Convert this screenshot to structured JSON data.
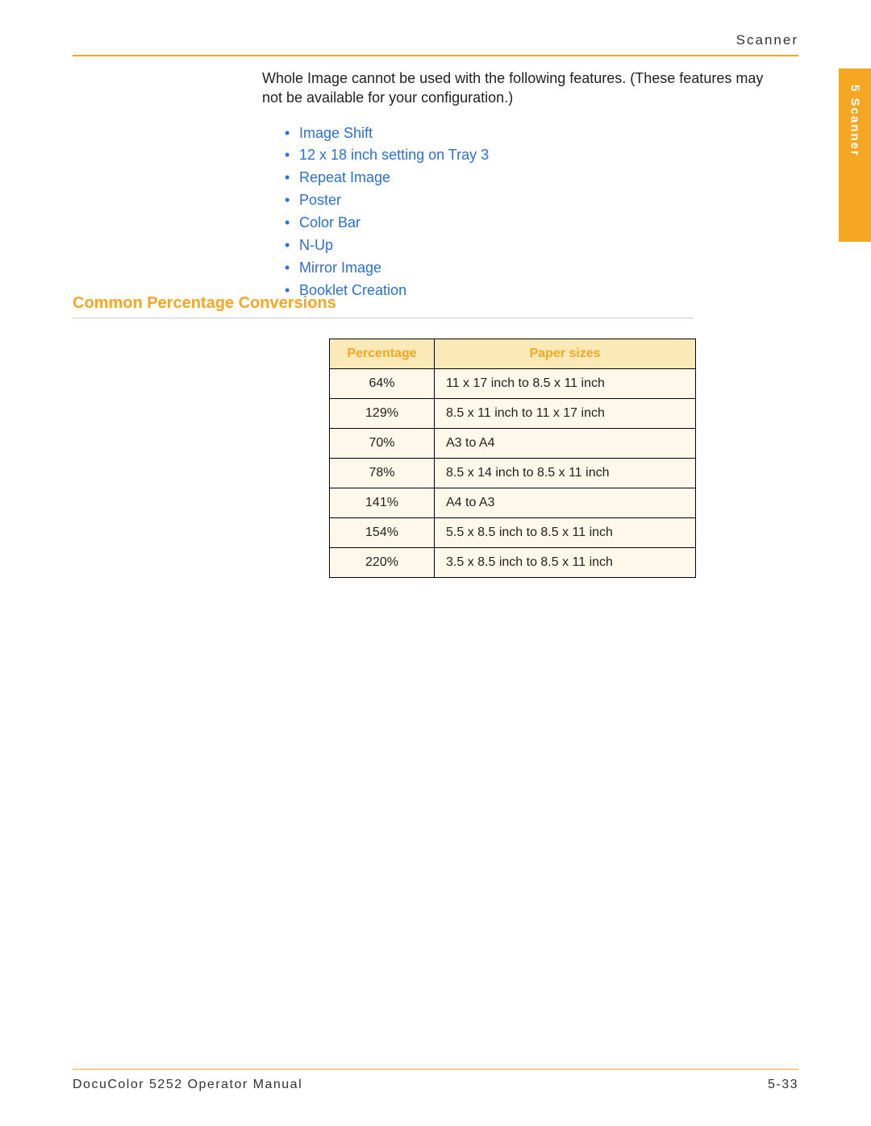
{
  "header": {
    "label": "Scanner"
  },
  "sideTab": {
    "text": "5 Scanner"
  },
  "content": {
    "intro": "Whole Image cannot be used with the following features. (These features may not be available for your configuration.)",
    "features": [
      "Image Shift",
      "12 x 18 inch setting on Tray 3",
      "Repeat Image",
      "Poster",
      "Color Bar",
      "N-Up",
      "Mirror Image",
      "Booklet Creation"
    ]
  },
  "section": {
    "heading": "Common Percentage Conversions"
  },
  "table": {
    "columns": [
      "Percentage",
      "Paper sizes"
    ],
    "rows": [
      [
        "64%",
        "11 x 17 inch to 8.5 x 11 inch"
      ],
      [
        "129%",
        "8.5 x 11 inch to 11 x 17 inch"
      ],
      [
        "70%",
        "A3 to A4"
      ],
      [
        "78%",
        "8.5 x 14 inch to 8.5 x 11 inch"
      ],
      [
        "141%",
        "A4 to A3"
      ],
      [
        "154%",
        "5.5 x 8.5 inch to 8.5 x 11 inch"
      ],
      [
        "220%",
        "3.5 x 8.5 inch to 8.5 x 11 inch"
      ]
    ],
    "header_bg": "#fce9b8",
    "header_text_color": "#f5a623",
    "cell_bg": "#fdf8ea",
    "border_color": "#000000"
  },
  "footer": {
    "left": "DocuColor 5252 Operator Manual",
    "right": "5-33"
  },
  "colors": {
    "accent": "#f5a623",
    "link": "#2a70d6",
    "text": "#222222"
  }
}
